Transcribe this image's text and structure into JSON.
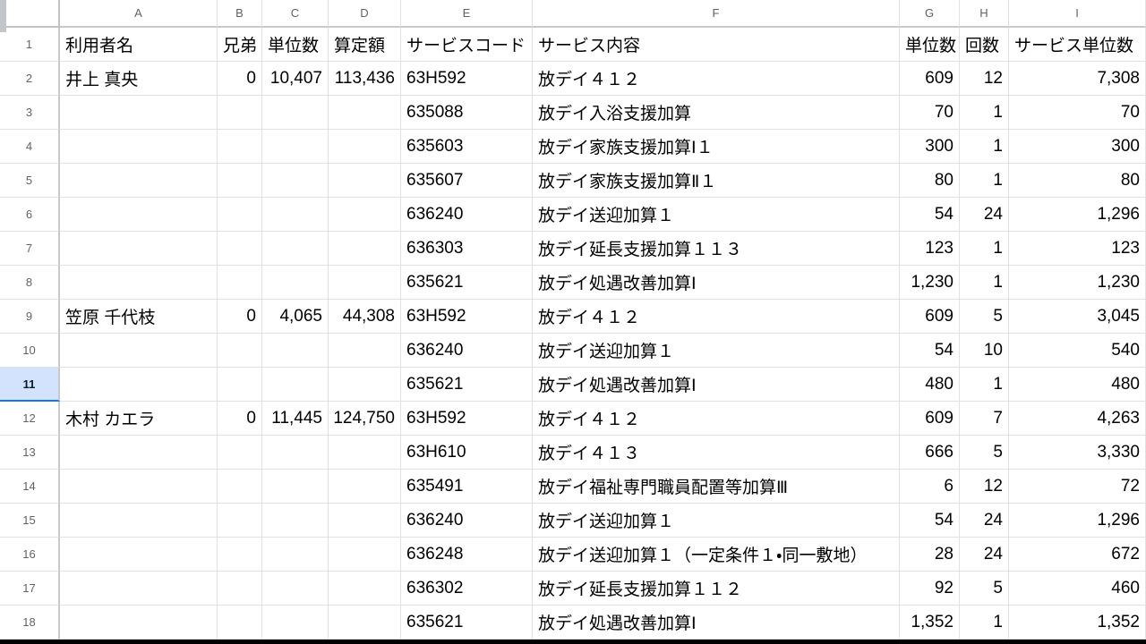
{
  "grid": {
    "column_letters": [
      "A",
      "B",
      "C",
      "D",
      "E",
      "F",
      "G",
      "H",
      "I"
    ],
    "selected_row": "11",
    "rows": [
      {
        "n": "1",
        "cells": [
          "利用者名",
          "兄弟",
          "単位数",
          "算定額",
          "サービスコード",
          "サービス内容",
          "単位数",
          "回数",
          "サービス単位数"
        ]
      },
      {
        "n": "2",
        "cells": [
          "井上 真央",
          "0",
          "10,407",
          "113,436",
          "63H592",
          "放デイ４１２",
          "609",
          "12",
          "7,308"
        ]
      },
      {
        "n": "3",
        "cells": [
          "",
          "",
          "",
          "",
          "635088",
          "放デイ入浴支援加算",
          "70",
          "1",
          "70"
        ]
      },
      {
        "n": "4",
        "cells": [
          "",
          "",
          "",
          "",
          "635603",
          "放デイ家族支援加算Ⅰ１",
          "300",
          "1",
          "300"
        ]
      },
      {
        "n": "5",
        "cells": [
          "",
          "",
          "",
          "",
          "635607",
          "放デイ家族支援加算Ⅱ１",
          "80",
          "1",
          "80"
        ]
      },
      {
        "n": "6",
        "cells": [
          "",
          "",
          "",
          "",
          "636240",
          "放デイ送迎加算１",
          "54",
          "24",
          "1,296"
        ]
      },
      {
        "n": "7",
        "cells": [
          "",
          "",
          "",
          "",
          "636303",
          "放デイ延長支援加算１１３",
          "123",
          "1",
          "123"
        ]
      },
      {
        "n": "8",
        "cells": [
          "",
          "",
          "",
          "",
          "635621",
          "放デイ処遇改善加算Ⅰ",
          "1,230",
          "1",
          "1,230"
        ]
      },
      {
        "n": "9",
        "cells": [
          "笠原 千代枝",
          "0",
          "4,065",
          "44,308",
          "63H592",
          "放デイ４１２",
          "609",
          "5",
          "3,045"
        ]
      },
      {
        "n": "10",
        "cells": [
          "",
          "",
          "",
          "",
          "636240",
          "放デイ送迎加算１",
          "54",
          "10",
          "540"
        ]
      },
      {
        "n": "11",
        "cells": [
          "",
          "",
          "",
          "",
          "635621",
          "放デイ処遇改善加算Ⅰ",
          "480",
          "1",
          "480"
        ]
      },
      {
        "n": "12",
        "cells": [
          "木村 カエラ",
          "0",
          "11,445",
          "124,750",
          "63H592",
          "放デイ４１２",
          "609",
          "7",
          "4,263"
        ]
      },
      {
        "n": "13",
        "cells": [
          "",
          "",
          "",
          "",
          "63H610",
          "放デイ４１３",
          "666",
          "5",
          "3,330"
        ]
      },
      {
        "n": "14",
        "cells": [
          "",
          "",
          "",
          "",
          "635491",
          "放デイ福祉専門職員配置等加算Ⅲ",
          "6",
          "12",
          "72"
        ]
      },
      {
        "n": "15",
        "cells": [
          "",
          "",
          "",
          "",
          "636240",
          "放デイ送迎加算１",
          "54",
          "24",
          "1,296"
        ]
      },
      {
        "n": "16",
        "cells": [
          "",
          "",
          "",
          "",
          "636248",
          "放デイ送迎加算１（一定条件１・同一敷地）",
          "28",
          "24",
          "672"
        ]
      },
      {
        "n": "17",
        "cells": [
          "",
          "",
          "",
          "",
          "636302",
          "放デイ延長支援加算１１２",
          "92",
          "5",
          "460"
        ]
      },
      {
        "n": "18",
        "cells": [
          "",
          "",
          "",
          "",
          "635621",
          "放デイ処遇改善加算Ⅰ",
          "1,352",
          "1",
          "1,352"
        ]
      }
    ]
  },
  "colors": {
    "gridline": "#e1e1e1",
    "header_divider": "#c9c9c9",
    "header_text": "#5f6368",
    "cell_text": "#000000",
    "selected_row_header_bg": "#d3e3fd",
    "selected_row_header_text": "#001d35",
    "selected_row_header_accent": "#1a73e8"
  }
}
